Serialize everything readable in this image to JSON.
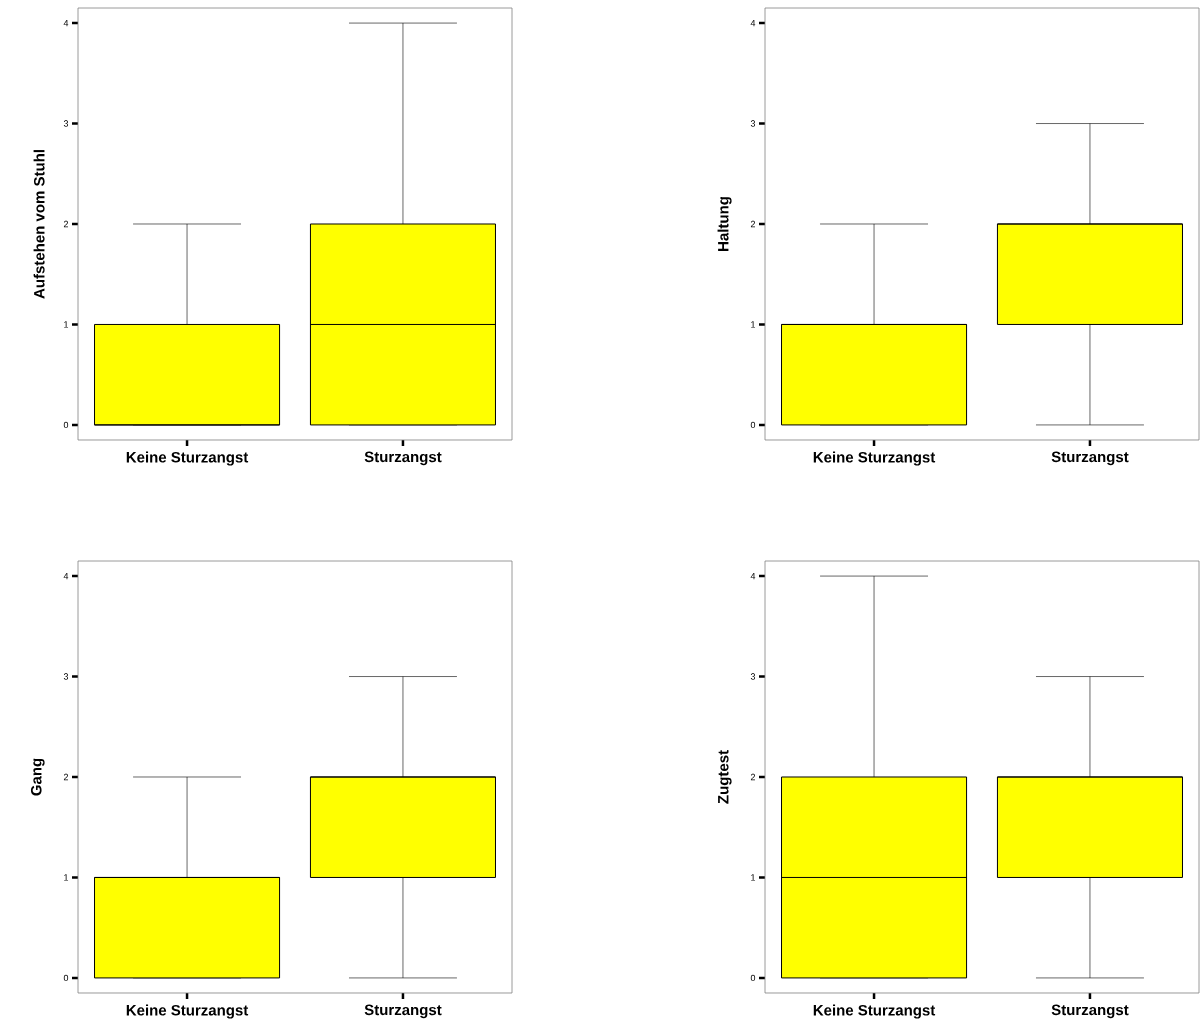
{
  "chart_data": [
    {
      "type": "box",
      "ylabel": "Aufstehen vom Stuhl",
      "categories": [
        "Keine Sturzangst",
        "Sturzangst"
      ],
      "color": "#ffff00",
      "ylim": [
        -0.15,
        4.15
      ],
      "yticks": [
        0,
        1,
        2,
        3,
        4
      ],
      "boxes": [
        {
          "low": 0,
          "q1": 0,
          "median": 0,
          "q3": 1,
          "high": 2
        },
        {
          "low": 0,
          "q1": 0,
          "median": 1,
          "q3": 2,
          "high": 4
        }
      ]
    },
    {
      "type": "box",
      "ylabel": "Haltung",
      "categories": [
        "Keine Sturzangst",
        "Sturzangst"
      ],
      "color": "#ffff00",
      "ylim": [
        -0.15,
        4.15
      ],
      "yticks": [
        0,
        1,
        2,
        3,
        4
      ],
      "boxes": [
        {
          "low": 0,
          "q1": 0,
          "median": 1,
          "q3": 1,
          "high": 2
        },
        {
          "low": 0,
          "q1": 1,
          "median": 2,
          "q3": 2,
          "high": 3
        }
      ]
    },
    {
      "type": "box",
      "ylabel": "Gang",
      "categories": [
        "Keine Sturzangst",
        "Sturzangst"
      ],
      "color": "#ffff00",
      "ylim": [
        -0.15,
        4.15
      ],
      "yticks": [
        0,
        1,
        2,
        3,
        4
      ],
      "boxes": [
        {
          "low": 0,
          "q1": 0,
          "median": 1,
          "q3": 1,
          "high": 2
        },
        {
          "low": 0,
          "q1": 1,
          "median": 2,
          "q3": 2,
          "high": 3
        }
      ]
    },
    {
      "type": "box",
      "ylabel": "Zugtest",
      "categories": [
        "Keine Sturzangst",
        "Sturzangst"
      ],
      "color": "#ffff00",
      "ylim": [
        -0.15,
        4.15
      ],
      "yticks": [
        0,
        1,
        2,
        3,
        4
      ],
      "boxes": [
        {
          "low": 0,
          "q1": 0,
          "median": 1,
          "q3": 2,
          "high": 4
        },
        {
          "low": 0,
          "q1": 1,
          "median": 2,
          "q3": 2,
          "high": 3
        }
      ]
    }
  ]
}
